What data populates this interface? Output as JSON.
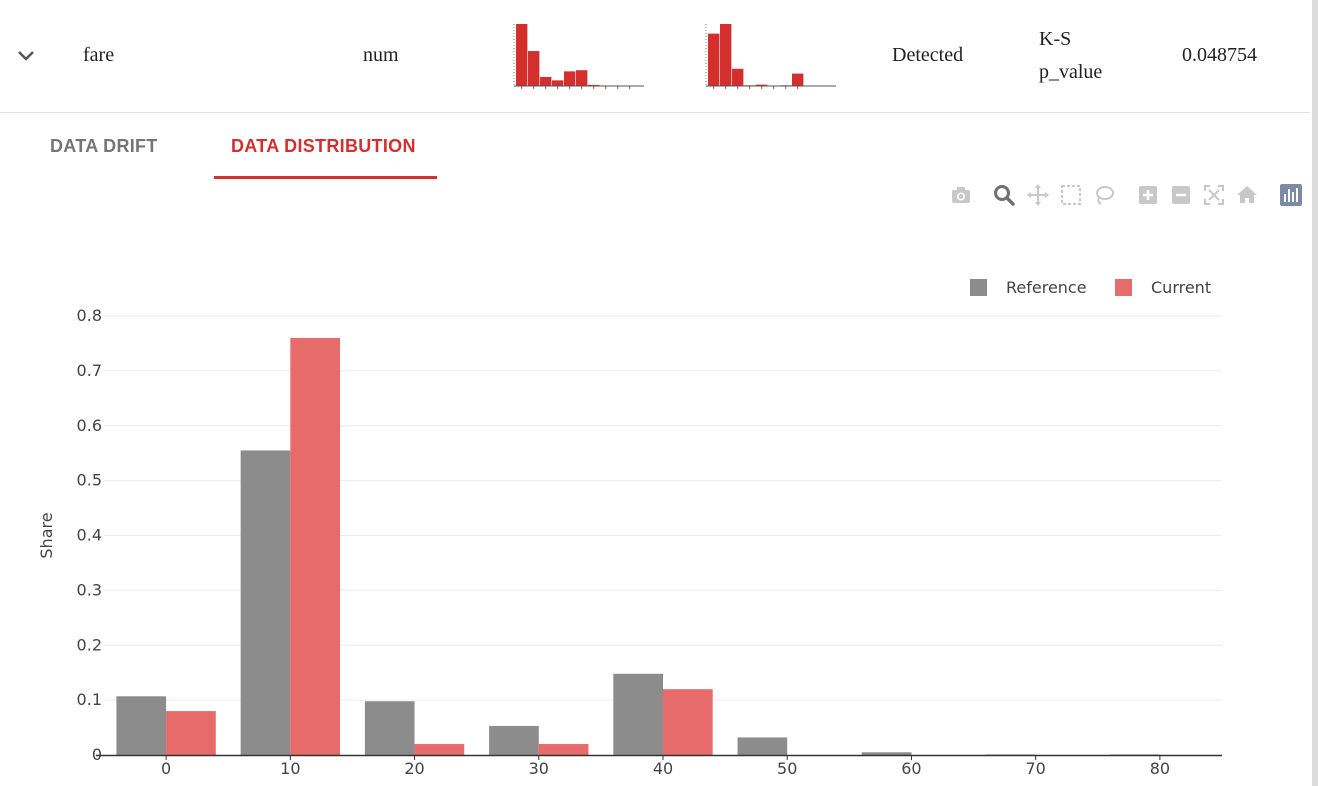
{
  "row": {
    "feature": "fare",
    "type": "num",
    "drift_status": "Detected",
    "stattest_line1": "K-S",
    "stattest_line2": "p_value",
    "drift_score": "0.048754",
    "reference_sparkline": [
      0.55,
      0.31,
      0.08,
      0.05,
      0.13,
      0.14,
      0.01,
      0,
      0,
      0
    ],
    "current_sparkline": [
      0.76,
      0.9,
      0.25,
      0.01,
      0.02,
      0,
      0.01,
      0.18
    ],
    "sparkline_color": "#d32f2f"
  },
  "tabs": [
    {
      "label": "DATA DRIFT",
      "active": false
    },
    {
      "label": "DATA DISTRIBUTION",
      "active": true
    }
  ],
  "modebar": [
    "camera-icon",
    "zoom-icon",
    "pan-icon",
    "box-select-icon",
    "lasso-icon",
    "zoom-in-icon",
    "zoom-out-icon",
    "autoscale-icon",
    "reset-axes-icon",
    "plotly-logo-icon"
  ],
  "chart_data": {
    "type": "bar",
    "categories": [
      "0",
      "10",
      "20",
      "30",
      "40",
      "50",
      "60",
      "70",
      "80"
    ],
    "x": [
      0,
      10,
      20,
      30,
      40,
      50,
      60,
      70,
      80
    ],
    "series": [
      {
        "name": "Reference",
        "color": "#8c8c8c",
        "values": [
          0.107,
          0.555,
          0.098,
          0.053,
          0.148,
          0.032,
          0.005,
          0.001,
          0.001
        ]
      },
      {
        "name": "Current",
        "color": "#e86b6b",
        "values": [
          0.08,
          0.76,
          0.02,
          0.02,
          0.12,
          0,
          0,
          0,
          0
        ]
      }
    ],
    "ylabel": "Share",
    "xlabel": "",
    "ylim": [
      0,
      0.8
    ],
    "yticks": [
      "0",
      "0.1",
      "0.2",
      "0.3",
      "0.4",
      "0.5",
      "0.6",
      "0.7",
      "0.8"
    ],
    "grid": true,
    "legend": "top-right"
  }
}
